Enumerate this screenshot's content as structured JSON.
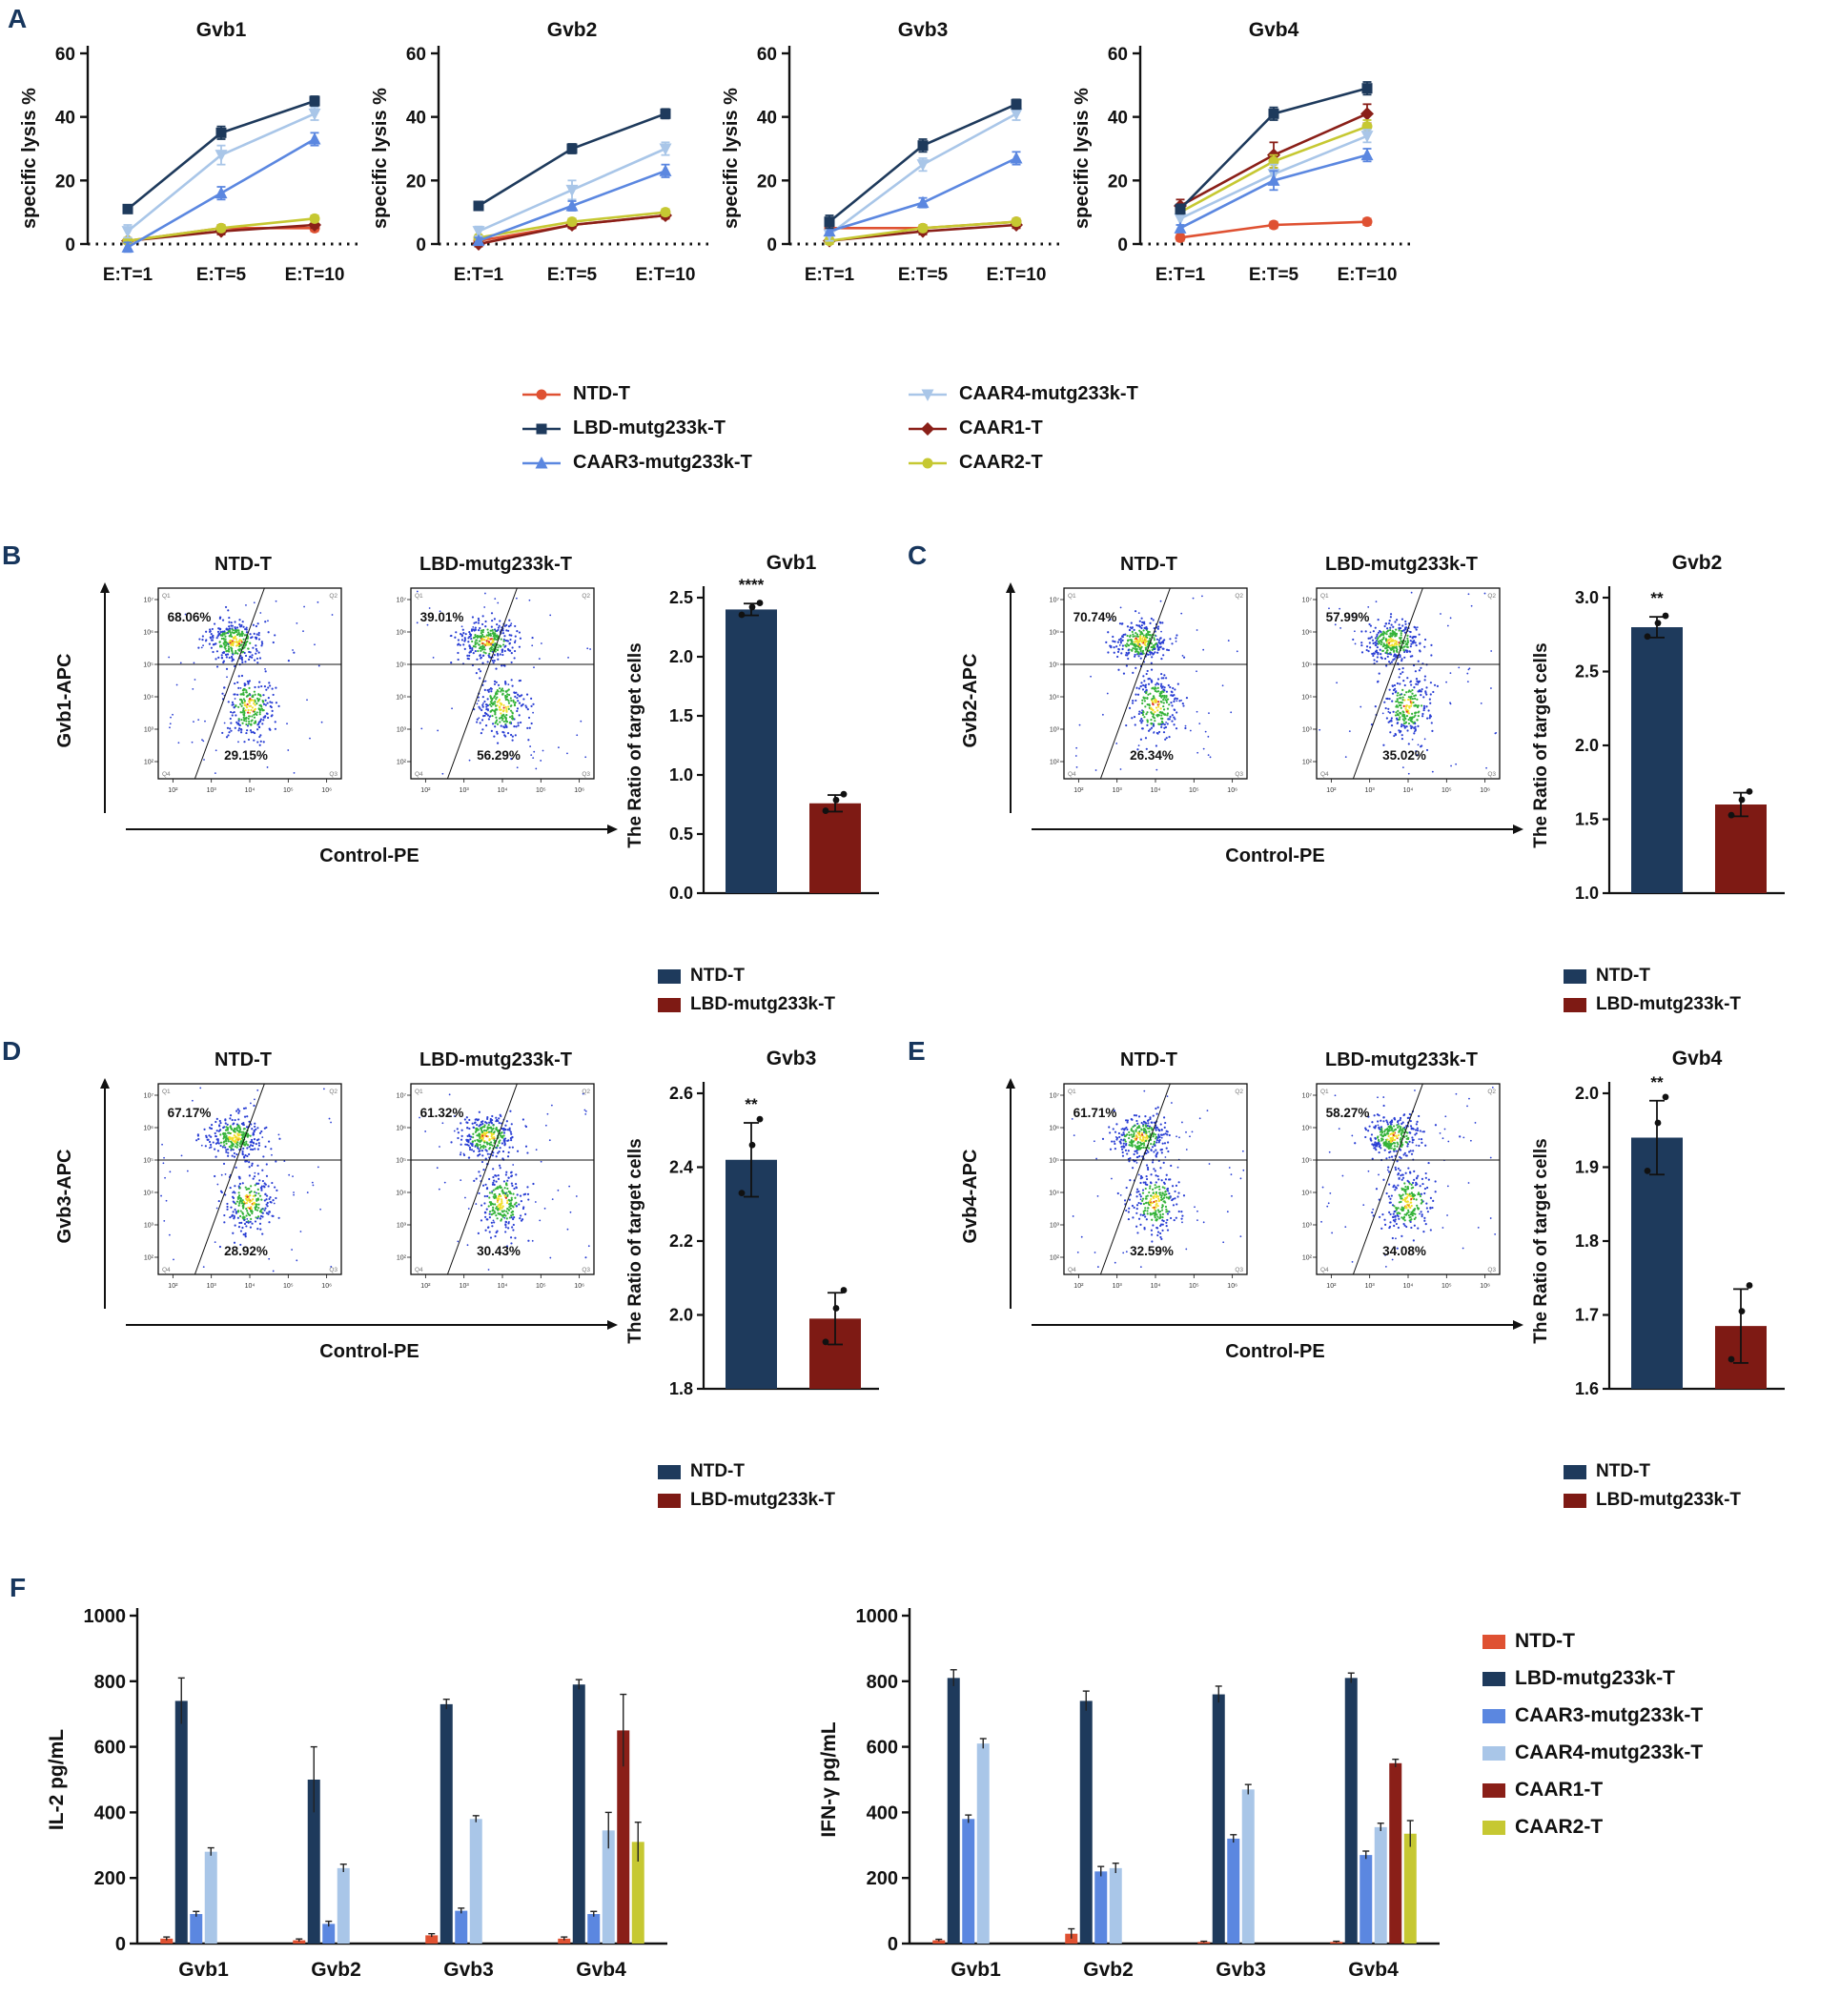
{
  "panel_labels": {
    "A": "A",
    "B": "B",
    "C": "C",
    "D": "D",
    "E": "E",
    "F": "F"
  },
  "colors": {
    "series": {
      "NTD-T": "#df5132",
      "LBD-mutg233k-T": "#1e3a5c",
      "CAAR3-mutg233k-T": "#5b87e0",
      "CAAR4-mutg233k-T": "#a9c6e8",
      "CAAR1-T": "#8a1f18",
      "CAAR2-T": "#c6c832"
    },
    "ratio_bars": [
      "#1e3a5c",
      "#7e1a14"
    ],
    "panel_label": "#17365d",
    "scatter": {
      "outer": "#2a3fd4",
      "mid": "#35b33a",
      "core": "#f2df2a",
      "hot": "#e03020"
    }
  },
  "markers": {
    "NTD-T": "circle",
    "LBD-mutg233k-T": "square",
    "CAAR3-mutg233k-T": "triangle-up",
    "CAAR4-mutg233k-T": "triangle-down",
    "CAAR1-T": "diamond",
    "CAAR2-T": "circle"
  },
  "legend_A": {
    "col1": [
      "NTD-T",
      "LBD-mutg233k-T",
      "CAAR3-mutg233k-T"
    ],
    "col2": [
      "CAAR4-mutg233k-T",
      "CAAR1-T",
      "CAAR2-T"
    ]
  },
  "flow_axis": {
    "y_ticks": [
      "10⁷",
      "10⁶",
      "10⁵",
      "10⁴",
      "10³",
      "10²"
    ],
    "x_ticks": [
      "10²",
      "10³",
      "10⁴",
      "10⁵",
      "10⁶"
    ],
    "quadrants": {
      "q1": "Q1",
      "q2": "Q2",
      "q3": "Q3",
      "q4": "Q4"
    }
  },
  "chart_data": {
    "lysis_charts": [
      {
        "type": "line",
        "title": "Gvb1",
        "ylabel": "specific lysis %",
        "categories": [
          "E:T=1",
          "E:T=5",
          "E:T=10"
        ],
        "ylim": [
          -6,
          60
        ],
        "yticks": [
          0,
          20,
          40,
          60
        ],
        "series": [
          {
            "name": "NTD-T",
            "values": [
              1,
              5,
              5
            ],
            "errors": [
              0.8,
              1,
              1
            ]
          },
          {
            "name": "CAAR1-T",
            "values": [
              1,
              4,
              6
            ],
            "errors": [
              0.8,
              1,
              1
            ]
          },
          {
            "name": "CAAR2-T",
            "values": [
              1,
              5,
              8
            ],
            "errors": [
              0.8,
              1,
              1
            ]
          },
          {
            "name": "CAAR4-mutg233k-T",
            "values": [
              4,
              28,
              41
            ],
            "errors": [
              2,
              3,
              2
            ]
          },
          {
            "name": "CAAR3-mutg233k-T",
            "values": [
              -1,
              16,
              33
            ],
            "errors": [
              1.5,
              2,
              2
            ]
          },
          {
            "name": "LBD-mutg233k-T",
            "values": [
              11,
              35,
              45
            ],
            "errors": [
              1,
              2,
              1.5
            ]
          }
        ]
      },
      {
        "type": "line",
        "title": "Gvb2",
        "ylabel": "specific lysis %",
        "categories": [
          "E:T=1",
          "E:T=5",
          "E:T=10"
        ],
        "ylim": [
          -6,
          60
        ],
        "yticks": [
          0,
          20,
          40,
          60
        ],
        "series": [
          {
            "name": "NTD-T",
            "values": [
              1,
              6,
              9
            ],
            "errors": [
              0.8,
              1,
              1
            ]
          },
          {
            "name": "CAAR1-T",
            "values": [
              0,
              6,
              9
            ],
            "errors": [
              0.8,
              1,
              1
            ]
          },
          {
            "name": "CAAR2-T",
            "values": [
              2,
              7,
              10
            ],
            "errors": [
              0.8,
              1,
              1
            ]
          },
          {
            "name": "CAAR4-mutg233k-T",
            "values": [
              4,
              17,
              30
            ],
            "errors": [
              1.5,
              3,
              2
            ]
          },
          {
            "name": "CAAR3-mutg233k-T",
            "values": [
              1,
              12,
              23
            ],
            "errors": [
              1,
              1.5,
              2
            ]
          },
          {
            "name": "LBD-mutg233k-T",
            "values": [
              12,
              30,
              41
            ],
            "errors": [
              1,
              1.5,
              1.5
            ]
          }
        ]
      },
      {
        "type": "line",
        "title": "Gvb3",
        "ylabel": "specific lysis %",
        "categories": [
          "E:T=1",
          "E:T=5",
          "E:T=10"
        ],
        "ylim": [
          -6,
          60
        ],
        "yticks": [
          0,
          20,
          40,
          60
        ],
        "series": [
          {
            "name": "NTD-T",
            "values": [
              5,
              5,
              7
            ],
            "errors": [
              3,
              1,
              1
            ]
          },
          {
            "name": "CAAR1-T",
            "values": [
              1,
              4,
              6
            ],
            "errors": [
              1,
              1,
              1
            ]
          },
          {
            "name": "CAAR2-T",
            "values": [
              1,
              5,
              7
            ],
            "errors": [
              1,
              1,
              1
            ]
          },
          {
            "name": "CAAR4-mutg233k-T",
            "values": [
              3,
              25,
              41
            ],
            "errors": [
              2,
              2,
              2
            ]
          },
          {
            "name": "CAAR3-mutg233k-T",
            "values": [
              4,
              13,
              27
            ],
            "errors": [
              1,
              1.5,
              2
            ]
          },
          {
            "name": "LBD-mutg233k-T",
            "values": [
              7,
              31,
              44
            ],
            "errors": [
              2,
              2,
              1.5
            ]
          }
        ]
      },
      {
        "type": "line",
        "title": "Gvb4",
        "ylabel": "specific lysis %",
        "categories": [
          "E:T=1",
          "E:T=5",
          "E:T=10"
        ],
        "ylim": [
          -6,
          60
        ],
        "yticks": [
          0,
          20,
          40,
          60
        ],
        "series": [
          {
            "name": "NTD-T",
            "values": [
              2,
              6,
              7
            ],
            "errors": [
              1,
              1,
              1
            ]
          },
          {
            "name": "CAAR1-T",
            "values": [
              12,
              28,
              41
            ],
            "errors": [
              2,
              4,
              3
            ]
          },
          {
            "name": "CAAR2-T",
            "values": [
              10,
              26,
              37
            ],
            "errors": [
              1,
              2,
              2
            ]
          },
          {
            "name": "CAAR4-mutg233k-T",
            "values": [
              8,
              22,
              34
            ],
            "errors": [
              2,
              3,
              2
            ]
          },
          {
            "name": "CAAR3-mutg233k-T",
            "values": [
              5,
              20,
              28
            ],
            "errors": [
              1,
              3,
              2
            ]
          },
          {
            "name": "LBD-mutg233k-T",
            "values": [
              11,
              41,
              49
            ],
            "errors": [
              1.5,
              2,
              2
            ]
          }
        ]
      }
    ],
    "flow_panels": [
      {
        "key": "B",
        "ylabel": "Gvb1-APC",
        "xlabel": "Control-PE",
        "plots": [
          {
            "title": "NTD-T",
            "upper": "68.06%",
            "lower": "29.15%"
          },
          {
            "title": "LBD-mutg233k-T",
            "upper": "39.01%",
            "lower": "56.29%"
          }
        ],
        "bar": {
          "title": "Gvb1",
          "ylabel": "The Ratio of target cells",
          "sig": "****",
          "ymin": 0,
          "ymax": 2.5,
          "yticks": [
            "0.0",
            "0.5",
            "1.0",
            "1.5",
            "2.0",
            "2.5"
          ],
          "values": [
            2.4,
            0.76
          ],
          "errors": [
            0.05,
            0.07
          ],
          "legend": [
            "NTD-T",
            "LBD-mutg233k-T"
          ]
        }
      },
      {
        "key": "C",
        "ylabel": "Gvb2-APC",
        "xlabel": "Control-PE",
        "plots": [
          {
            "title": "NTD-T",
            "upper": "70.74%",
            "lower": "26.34%"
          },
          {
            "title": "LBD-mutg233k-T",
            "upper": "57.99%",
            "lower": "35.02%"
          }
        ],
        "bar": {
          "title": "Gvb2",
          "ylabel": "The Ratio of target cells",
          "sig": "**",
          "ymin": 1.0,
          "ymax": 3.0,
          "yticks": [
            "1.0",
            "1.5",
            "2.0",
            "2.5",
            "3.0"
          ],
          "values": [
            2.8,
            1.6
          ],
          "errors": [
            0.07,
            0.08
          ],
          "legend": [
            "NTD-T",
            "LBD-mutg233k-T"
          ]
        }
      },
      {
        "key": "D",
        "ylabel": "Gvb3-APC",
        "xlabel": "Control-PE",
        "plots": [
          {
            "title": "NTD-T",
            "upper": "67.17%",
            "lower": "28.92%"
          },
          {
            "title": "LBD-mutg233k-T",
            "upper": "61.32%",
            "lower": "30.43%"
          }
        ],
        "bar": {
          "title": "Gvb3",
          "ylabel": "The Ratio of target cells",
          "sig": "**",
          "ymin": 1.8,
          "ymax": 2.6,
          "yticks": [
            "1.8",
            "2.0",
            "2.2",
            "2.4",
            "2.6"
          ],
          "values": [
            2.42,
            1.99
          ],
          "errors": [
            0.1,
            0.07
          ],
          "legend": [
            "NTD-T",
            "LBD-mutg233k-T"
          ]
        }
      },
      {
        "key": "E",
        "ylabel": "Gvb4-APC",
        "xlabel": "Control-PE",
        "plots": [
          {
            "title": "NTD-T",
            "upper": "61.71%",
            "lower": "32.59%"
          },
          {
            "title": "LBD-mutg233k-T",
            "upper": "58.27%",
            "lower": "34.08%"
          }
        ],
        "bar": {
          "title": "Gvb4",
          "ylabel": "The Ratio of target cells",
          "sig": "**",
          "ymin": 1.6,
          "ymax": 2.0,
          "yticks": [
            "1.6",
            "1.7",
            "1.8",
            "1.9",
            "2.0"
          ],
          "values": [
            1.94,
            1.685
          ],
          "errors": [
            0.05,
            0.05
          ],
          "legend": [
            "NTD-T",
            "LBD-mutg233k-T"
          ]
        }
      }
    ],
    "cytokine_charts": [
      {
        "type": "bar",
        "ylabel": "IL-2 pg/mL",
        "ymin": 0,
        "ymax": 1000,
        "yticks": [
          0,
          200,
          400,
          600,
          800,
          1000
        ],
        "categories": [
          "Gvb1",
          "Gvb2",
          "Gvb3",
          "Gvb4"
        ],
        "series": [
          {
            "name": "NTD-T",
            "values": [
              15,
              10,
              25,
              15
            ],
            "errors": [
              5,
              4,
              5,
              5
            ]
          },
          {
            "name": "LBD-mutg233k-T",
            "values": [
              740,
              500,
              730,
              790
            ],
            "errors": [
              70,
              100,
              15,
              15
            ]
          },
          {
            "name": "CAAR3-mutg233k-T",
            "values": [
              90,
              60,
              100,
              90
            ],
            "errors": [
              8,
              8,
              8,
              8
            ]
          },
          {
            "name": "CAAR4-mutg233k-T",
            "values": [
              280,
              230,
              380,
              345
            ],
            "errors": [
              12,
              12,
              10,
              55
            ]
          },
          {
            "name": "CAAR1-T",
            "values": [
              0,
              0,
              0,
              650
            ],
            "errors": [
              0,
              0,
              0,
              110
            ]
          },
          {
            "name": "CAAR2-T",
            "values": [
              0,
              0,
              0,
              310
            ],
            "errors": [
              0,
              0,
              0,
              60
            ]
          }
        ]
      },
      {
        "type": "bar",
        "ylabel": "IFN-γ pg/mL",
        "ymin": 0,
        "ymax": 1000,
        "yticks": [
          0,
          200,
          400,
          600,
          800,
          1000
        ],
        "categories": [
          "Gvb1",
          "Gvb2",
          "Gvb3",
          "Gvb4"
        ],
        "series": [
          {
            "name": "NTD-T",
            "values": [
              10,
              30,
              5,
              5
            ],
            "errors": [
              3,
              15,
              2,
              2
            ]
          },
          {
            "name": "LBD-mutg233k-T",
            "values": [
              810,
              740,
              760,
              810
            ],
            "errors": [
              25,
              30,
              25,
              15
            ]
          },
          {
            "name": "CAAR3-mutg233k-T",
            "values": [
              380,
              220,
              320,
              270
            ],
            "errors": [
              12,
              15,
              12,
              12
            ]
          },
          {
            "name": "CAAR4-mutg233k-T",
            "values": [
              610,
              230,
              470,
              355
            ],
            "errors": [
              15,
              15,
              15,
              12
            ]
          },
          {
            "name": "CAAR1-T",
            "values": [
              0,
              0,
              0,
              550
            ],
            "errors": [
              0,
              0,
              0,
              12
            ]
          },
          {
            "name": "CAAR2-T",
            "values": [
              0,
              0,
              0,
              335
            ],
            "errors": [
              0,
              0,
              0,
              40
            ]
          }
        ]
      }
    ],
    "cytokine_legend": [
      "NTD-T",
      "LBD-mutg233k-T",
      "CAAR3-mutg233k-T",
      "CAAR4-mutg233k-T",
      "CAAR1-T",
      "CAAR2-T"
    ]
  }
}
